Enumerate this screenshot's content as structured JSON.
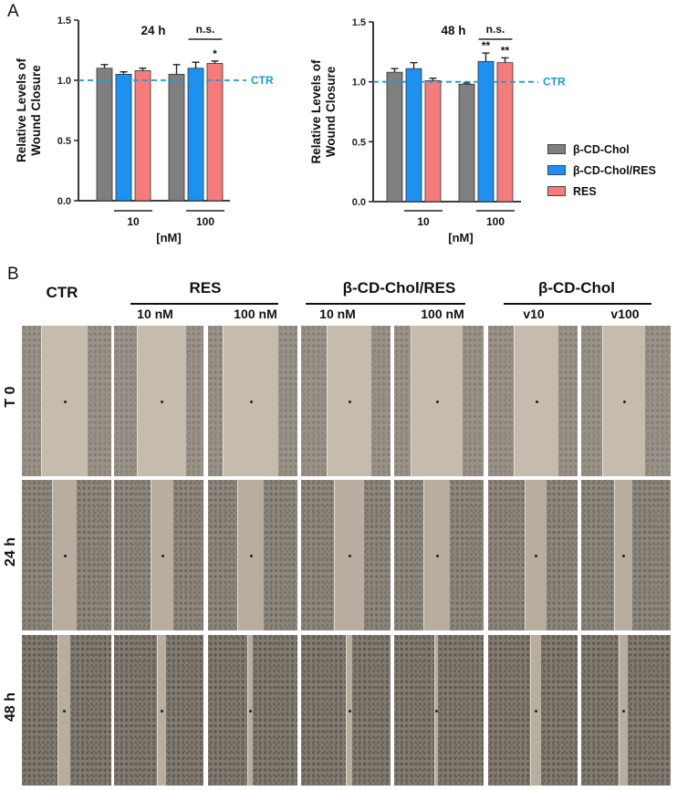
{
  "panel_a": {
    "letter": "A"
  },
  "panel_b": {
    "letter": "B"
  },
  "chart_data": [
    {
      "type": "bar",
      "title": "24 h",
      "xlabel": "[nM]",
      "ylabel": "Relative Levels of Wound Closure",
      "ylim": [
        0,
        1.5
      ],
      "yticks": [
        "0.0",
        "0.5",
        "1.0",
        "1.5"
      ],
      "categories": [
        "10",
        "100"
      ],
      "reference_line": {
        "value": 1.0,
        "label": "CTR",
        "color": "#1a9ad6",
        "style": "dashed"
      },
      "series": [
        {
          "name": "β-CD-Chol",
          "color": "#7f7f7f",
          "values": [
            1.1,
            1.05
          ],
          "errors": [
            0.03,
            0.08
          ]
        },
        {
          "name": "β-CD-Chol/RES",
          "color": "#1e90f0",
          "values": [
            1.05,
            1.1
          ],
          "errors": [
            0.02,
            0.05
          ]
        },
        {
          "name": "RES",
          "color": "#f47c7c",
          "values": [
            1.08,
            1.14
          ],
          "errors": [
            0.02,
            0.02
          ]
        }
      ],
      "annotations": [
        {
          "text": "n.s.",
          "group": "100",
          "bracket": "β-CD-Chol/RES vs RES"
        },
        {
          "text": "*",
          "group": "100",
          "series": "RES"
        }
      ],
      "grid": false
    },
    {
      "type": "bar",
      "title": "48 h",
      "xlabel": "[nM]",
      "ylabel": "Relative Levels of Wound Closure",
      "ylim": [
        0,
        1.5
      ],
      "yticks": [
        "0.0",
        "0.5",
        "1.0",
        "1.5"
      ],
      "categories": [
        "10",
        "100"
      ],
      "reference_line": {
        "value": 1.0,
        "label": "CTR",
        "color": "#1a9ad6",
        "style": "dashed"
      },
      "series": [
        {
          "name": "β-CD-Chol",
          "color": "#7f7f7f",
          "values": [
            1.08,
            0.98
          ],
          "errors": [
            0.03,
            0.01
          ]
        },
        {
          "name": "β-CD-Chol/RES",
          "color": "#1e90f0",
          "values": [
            1.11,
            1.17
          ],
          "errors": [
            0.05,
            0.07
          ]
        },
        {
          "name": "RES",
          "color": "#f47c7c",
          "values": [
            1.01,
            1.16
          ],
          "errors": [
            0.02,
            0.04
          ]
        }
      ],
      "annotations": [
        {
          "text": "n.s.",
          "group": "100",
          "bracket": "β-CD-Chol/RES vs RES"
        },
        {
          "text": "**",
          "group": "100",
          "series": "β-CD-Chol/RES"
        },
        {
          "text": "**",
          "group": "100",
          "series": "RES"
        }
      ],
      "grid": false,
      "legend_position": "right"
    }
  ],
  "legend": {
    "items": [
      {
        "label": "β-CD-Chol",
        "color": "#7f7f7f"
      },
      {
        "label": "β-CD-Chol/RES",
        "color": "#1e90f0"
      },
      {
        "label": "RES",
        "color": "#f47c7c"
      }
    ]
  },
  "micrographs": {
    "groups": [
      {
        "label": "CTR"
      },
      {
        "label": "RES"
      },
      {
        "label": "β-CD-Chol/RES"
      },
      {
        "label": "β-CD-Chol"
      }
    ],
    "columns": [
      {
        "label": ""
      },
      {
        "label": "10 nM"
      },
      {
        "label": "100 nM"
      },
      {
        "label": "10 nM"
      },
      {
        "label": "100 nM"
      },
      {
        "label": "v10"
      },
      {
        "label": "v100"
      }
    ],
    "rows": [
      {
        "label": "T 0",
        "gap_widths": [
          0.52,
          0.55,
          0.62,
          0.5,
          0.58,
          0.5,
          0.48
        ]
      },
      {
        "label": "24 h",
        "gap_widths": [
          0.28,
          0.26,
          0.3,
          0.34,
          0.3,
          0.24,
          0.2
        ]
      },
      {
        "label": "48 h",
        "gap_widths": [
          0.14,
          0.1,
          0.06,
          0.07,
          0.04,
          0.12,
          0.1
        ]
      }
    ]
  }
}
